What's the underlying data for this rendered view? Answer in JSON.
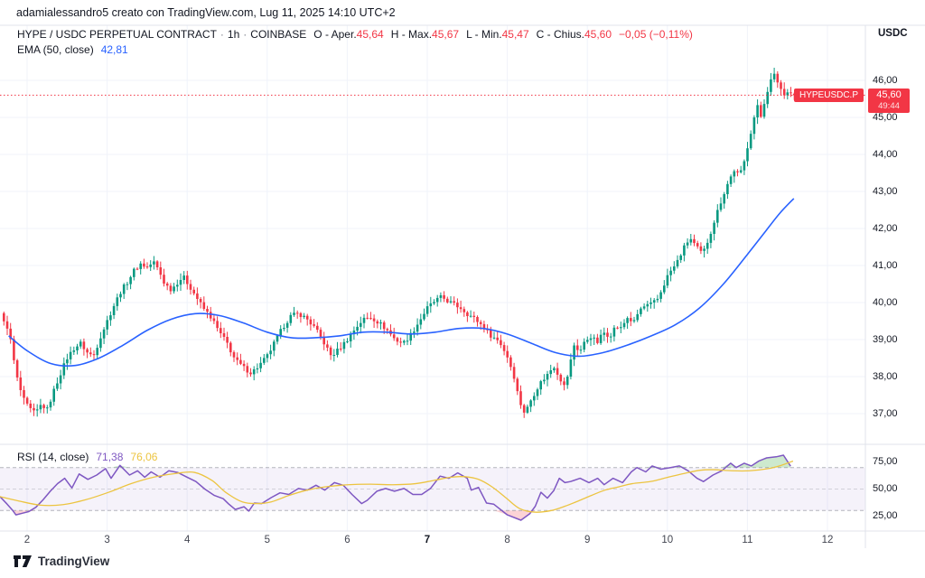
{
  "header": {
    "attribution": "adamialessandro5 creato con TradingView.com, Lug 11, 2025 14:10 UTC+2"
  },
  "legend": {
    "symbol": "HYPE / USDC PERPETUAL CONTRACT",
    "separator": "·",
    "timeframe": "1h",
    "exchange": "COINBASE",
    "ohlc": [
      {
        "label": "O - Aper.",
        "value": "45,64"
      },
      {
        "label": "H - Max.",
        "value": "45,67"
      },
      {
        "label": "L - Min.",
        "value": "45,47"
      },
      {
        "label": "C - Chius.",
        "value": "45,60"
      }
    ],
    "change": "−0,05 (−0,11%)",
    "ema_label": "EMA (50, close)",
    "ema_value": "42,81"
  },
  "rsi_legend": {
    "label": "RSI (14, close)",
    "value": "71,38",
    "ma_value": "76,06"
  },
  "price_axis": {
    "currency": "USDC",
    "badge": {
      "symbol": "HYPEUSDC.P",
      "price": "45,60",
      "countdown": "49:44"
    }
  },
  "footer": {
    "brand": "TradingView"
  },
  "colors": {
    "up": "#089981",
    "down": "#f23645",
    "ema": "#2962ff",
    "rsi": "#7e57c2",
    "rsi_ma": "#ecc440",
    "grid": "#f0f3fa",
    "border": "#e0e3eb",
    "rsi_band": "rgba(126,87,194,0.08)",
    "band_line": "#787b86",
    "overbought_fill": "rgba(76,175,80,0.28)",
    "oversold_fill": "rgba(242,54,69,0.22)"
  },
  "chart_data": {
    "type": "candlestick",
    "title": "HYPE / USDC PERPETUAL CONTRACT · 1h · COINBASE",
    "timezone": "UTC+2",
    "x_axis": {
      "unit": "day of July 2025",
      "ticks": [
        {
          "day": 2,
          "label": "2"
        },
        {
          "day": 3,
          "label": "3"
        },
        {
          "day": 4,
          "label": "4"
        },
        {
          "day": 5,
          "label": "5"
        },
        {
          "day": 6,
          "label": "6"
        },
        {
          "day": 7,
          "label": "7",
          "bold": true
        },
        {
          "day": 8,
          "label": "8"
        },
        {
          "day": 9,
          "label": "9"
        },
        {
          "day": 10,
          "label": "10"
        },
        {
          "day": 11,
          "label": "11"
        },
        {
          "day": 12,
          "label": "12"
        }
      ]
    },
    "y_axis": {
      "range": [
        36.2,
        47.5
      ],
      "ticks": [
        {
          "value": 46,
          "label": "46,00"
        },
        {
          "value": 45,
          "label": "45,00"
        },
        {
          "value": 44,
          "label": "44,00"
        },
        {
          "value": 43,
          "label": "43,00"
        },
        {
          "value": 42,
          "label": "42,00"
        },
        {
          "value": 41,
          "label": "41,00"
        },
        {
          "value": 40,
          "label": "40,00"
        },
        {
          "value": 39,
          "label": "39,00"
        },
        {
          "value": 38,
          "label": "38,00"
        },
        {
          "value": 37,
          "label": "37,00"
        }
      ]
    },
    "last_bar": {
      "open": 45.64,
      "high": 45.67,
      "low": 45.47,
      "close": 45.6,
      "change": "-0,05",
      "change_pct": "-0,11%"
    },
    "current_price": 45.6,
    "bars": {
      "start_day": 1.71,
      "end_day": 11.58,
      "interval_days": 0.04167,
      "count": 238
    },
    "close_path": [
      [
        1.71,
        39.45
      ],
      [
        1.77,
        39.3
      ],
      [
        1.82,
        38.6
      ],
      [
        1.88,
        37.9
      ],
      [
        1.95,
        37.4
      ],
      [
        2.02,
        37.15
      ],
      [
        2.1,
        37.0
      ],
      [
        2.18,
        37.25
      ],
      [
        2.25,
        37.1
      ],
      [
        2.33,
        37.6
      ],
      [
        2.42,
        38.1
      ],
      [
        2.5,
        38.5
      ],
      [
        2.58,
        38.75
      ],
      [
        2.67,
        38.9
      ],
      [
        2.75,
        38.65
      ],
      [
        2.83,
        38.55
      ],
      [
        2.92,
        39.1
      ],
      [
        3.0,
        39.5
      ],
      [
        3.08,
        39.9
      ],
      [
        3.17,
        40.3
      ],
      [
        3.25,
        40.55
      ],
      [
        3.33,
        40.85
      ],
      [
        3.42,
        41.05
      ],
      [
        3.5,
        40.95
      ],
      [
        3.58,
        41.1
      ],
      [
        3.65,
        40.85
      ],
      [
        3.72,
        40.5
      ],
      [
        3.8,
        40.35
      ],
      [
        3.88,
        40.55
      ],
      [
        3.95,
        40.7
      ],
      [
        4.03,
        40.45
      ],
      [
        4.1,
        40.2
      ],
      [
        4.2,
        39.85
      ],
      [
        4.3,
        39.6
      ],
      [
        4.4,
        39.2
      ],
      [
        4.5,
        38.9
      ],
      [
        4.6,
        38.45
      ],
      [
        4.7,
        38.25
      ],
      [
        4.8,
        38.1
      ],
      [
        4.9,
        38.3
      ],
      [
        5.0,
        38.55
      ],
      [
        5.1,
        38.95
      ],
      [
        5.2,
        39.35
      ],
      [
        5.3,
        39.65
      ],
      [
        5.4,
        39.7
      ],
      [
        5.5,
        39.55
      ],
      [
        5.6,
        39.3
      ],
      [
        5.7,
        38.95
      ],
      [
        5.8,
        38.55
      ],
      [
        5.9,
        38.75
      ],
      [
        6.0,
        39.0
      ],
      [
        6.1,
        39.3
      ],
      [
        6.2,
        39.55
      ],
      [
        6.3,
        39.6
      ],
      [
        6.4,
        39.45
      ],
      [
        6.5,
        39.25
      ],
      [
        6.6,
        39.0
      ],
      [
        6.7,
        38.9
      ],
      [
        6.8,
        39.15
      ],
      [
        6.9,
        39.5
      ],
      [
        7.0,
        39.85
      ],
      [
        7.1,
        40.05
      ],
      [
        7.18,
        40.15
      ],
      [
        7.25,
        40.05
      ],
      [
        7.33,
        39.95
      ],
      [
        7.42,
        39.85
      ],
      [
        7.5,
        39.7
      ],
      [
        7.6,
        39.55
      ],
      [
        7.7,
        39.35
      ],
      [
        7.8,
        39.1
      ],
      [
        7.9,
        38.95
      ],
      [
        8.0,
        38.55
      ],
      [
        8.08,
        38.05
      ],
      [
        8.15,
        37.35
      ],
      [
        8.22,
        37.0
      ],
      [
        8.3,
        37.4
      ],
      [
        8.4,
        37.8
      ],
      [
        8.5,
        38.05
      ],
      [
        8.58,
        38.3
      ],
      [
        8.65,
        38.0
      ],
      [
        8.72,
        37.7
      ],
      [
        8.78,
        38.3
      ],
      [
        8.84,
        38.9
      ],
      [
        8.9,
        38.65
      ],
      [
        8.97,
        38.95
      ],
      [
        9.05,
        39.1
      ],
      [
        9.12,
        38.9
      ],
      [
        9.2,
        39.2
      ],
      [
        9.28,
        39.1
      ],
      [
        9.35,
        39.35
      ],
      [
        9.42,
        39.3
      ],
      [
        9.5,
        39.6
      ],
      [
        9.58,
        39.45
      ],
      [
        9.65,
        39.8
      ],
      [
        9.72,
        39.9
      ],
      [
        9.8,
        39.95
      ],
      [
        9.88,
        40.1
      ],
      [
        9.95,
        40.45
      ],
      [
        10.02,
        40.8
      ],
      [
        10.1,
        41.0
      ],
      [
        10.2,
        41.45
      ],
      [
        10.28,
        41.75
      ],
      [
        10.36,
        41.5
      ],
      [
        10.44,
        41.3
      ],
      [
        10.52,
        41.75
      ],
      [
        10.6,
        42.3
      ],
      [
        10.68,
        42.8
      ],
      [
        10.76,
        43.25
      ],
      [
        10.84,
        43.6
      ],
      [
        10.9,
        43.4
      ],
      [
        10.96,
        43.8
      ],
      [
        11.02,
        44.4
      ],
      [
        11.08,
        44.95
      ],
      [
        11.12,
        45.35
      ],
      [
        11.16,
        44.95
      ],
      [
        11.22,
        45.5
      ],
      [
        11.28,
        45.95
      ],
      [
        11.34,
        46.15
      ],
      [
        11.4,
        45.85
      ],
      [
        11.46,
        45.6
      ],
      [
        11.5,
        45.75
      ],
      [
        11.54,
        45.45
      ],
      [
        11.58,
        45.6
      ]
    ],
    "ema50_path": [
      [
        1.77,
        39.1
      ],
      [
        2.0,
        38.7
      ],
      [
        2.3,
        38.35
      ],
      [
        2.6,
        38.3
      ],
      [
        2.9,
        38.5
      ],
      [
        3.2,
        38.85
      ],
      [
        3.5,
        39.25
      ],
      [
        3.8,
        39.55
      ],
      [
        4.1,
        39.7
      ],
      [
        4.4,
        39.65
      ],
      [
        4.7,
        39.45
      ],
      [
        5.0,
        39.2
      ],
      [
        5.3,
        39.05
      ],
      [
        5.6,
        39.05
      ],
      [
        5.9,
        39.1
      ],
      [
        6.2,
        39.2
      ],
      [
        6.5,
        39.2
      ],
      [
        6.8,
        39.15
      ],
      [
        7.1,
        39.2
      ],
      [
        7.4,
        39.3
      ],
      [
        7.7,
        39.3
      ],
      [
        8.0,
        39.15
      ],
      [
        8.3,
        38.9
      ],
      [
        8.6,
        38.65
      ],
      [
        8.9,
        38.55
      ],
      [
        9.2,
        38.65
      ],
      [
        9.5,
        38.85
      ],
      [
        9.8,
        39.1
      ],
      [
        10.1,
        39.4
      ],
      [
        10.4,
        39.85
      ],
      [
        10.7,
        40.5
      ],
      [
        11.0,
        41.3
      ],
      [
        11.2,
        41.85
      ],
      [
        11.4,
        42.4
      ],
      [
        11.58,
        42.81
      ]
    ],
    "rsi": {
      "period": 14,
      "value": 71.38,
      "ma_value": 76.06,
      "bands": {
        "upper": 70,
        "middle": 50,
        "lower": 30
      },
      "axis_ticks": [
        {
          "value": 75,
          "label": "75,00"
        },
        {
          "value": 50,
          "label": "50,00"
        },
        {
          "value": 25,
          "label": "25,00"
        }
      ],
      "path": [
        [
          1.66,
          43
        ],
        [
          1.75,
          36
        ],
        [
          1.82,
          30
        ],
        [
          1.86,
          26
        ],
        [
          1.94,
          27.5
        ],
        [
          2.02,
          29
        ],
        [
          2.11,
          33
        ],
        [
          2.2,
          40
        ],
        [
          2.29,
          48
        ],
        [
          2.38,
          55
        ],
        [
          2.47,
          60
        ],
        [
          2.56,
          51
        ],
        [
          2.65,
          64
        ],
        [
          2.76,
          59
        ],
        [
          2.87,
          63
        ],
        [
          2.98,
          69
        ],
        [
          3.05,
          60
        ],
        [
          3.16,
          72
        ],
        [
          3.28,
          63
        ],
        [
          3.38,
          67
        ],
        [
          3.47,
          61
        ],
        [
          3.55,
          66
        ],
        [
          3.66,
          61
        ],
        [
          3.77,
          67
        ],
        [
          3.88,
          65.5
        ],
        [
          4.0,
          61
        ],
        [
          4.11,
          57
        ],
        [
          4.22,
          50
        ],
        [
          4.34,
          44
        ],
        [
          4.45,
          41
        ],
        [
          4.52,
          36
        ],
        [
          4.6,
          31
        ],
        [
          4.71,
          33.5
        ],
        [
          4.77,
          29.5
        ],
        [
          4.84,
          37
        ],
        [
          4.93,
          36.5
        ],
        [
          5.05,
          42
        ],
        [
          5.16,
          46.5
        ],
        [
          5.27,
          45
        ],
        [
          5.39,
          50.5
        ],
        [
          5.5,
          49
        ],
        [
          5.61,
          53.5
        ],
        [
          5.72,
          49
        ],
        [
          5.84,
          56
        ],
        [
          5.95,
          53.5
        ],
        [
          6.06,
          45
        ],
        [
          6.18,
          36.5
        ],
        [
          6.25,
          39.5
        ],
        [
          6.37,
          48
        ],
        [
          6.48,
          50.5
        ],
        [
          6.59,
          48
        ],
        [
          6.71,
          50.5
        ],
        [
          6.82,
          45
        ],
        [
          6.93,
          45
        ],
        [
          7.04,
          50.5
        ],
        [
          7.16,
          62
        ],
        [
          7.27,
          60
        ],
        [
          7.38,
          65
        ],
        [
          7.5,
          60
        ],
        [
          7.55,
          49
        ],
        [
          7.64,
          51.5
        ],
        [
          7.74,
          37
        ],
        [
          7.83,
          36
        ],
        [
          8.0,
          26
        ],
        [
          8.17,
          21
        ],
        [
          8.28,
          27
        ],
        [
          8.35,
          34
        ],
        [
          8.42,
          47
        ],
        [
          8.5,
          41.5
        ],
        [
          8.58,
          48.5
        ],
        [
          8.65,
          60
        ],
        [
          8.72,
          56
        ],
        [
          8.79,
          57
        ],
        [
          8.91,
          60
        ],
        [
          9.02,
          56
        ],
        [
          9.13,
          60
        ],
        [
          9.21,
          54
        ],
        [
          9.32,
          60
        ],
        [
          9.44,
          56
        ],
        [
          9.55,
          66
        ],
        [
          9.62,
          70
        ],
        [
          9.73,
          66
        ],
        [
          9.81,
          71.5
        ],
        [
          9.92,
          68.5
        ],
        [
          10.04,
          70
        ],
        [
          10.15,
          71.5
        ],
        [
          10.26,
          67
        ],
        [
          10.37,
          60
        ],
        [
          10.45,
          57
        ],
        [
          10.57,
          63
        ],
        [
          10.68,
          67
        ],
        [
          10.79,
          74
        ],
        [
          10.86,
          70
        ],
        [
          10.96,
          74
        ],
        [
          11.05,
          71.5
        ],
        [
          11.14,
          76
        ],
        [
          11.24,
          79
        ],
        [
          11.36,
          80
        ],
        [
          11.45,
          81.5
        ],
        [
          11.54,
          71.38
        ]
      ],
      "ma_path": [
        [
          1.66,
          43
        ],
        [
          1.89,
          39
        ],
        [
          2.17,
          35
        ],
        [
          2.45,
          35.5
        ],
        [
          2.73,
          40
        ],
        [
          3.02,
          47
        ],
        [
          3.3,
          55
        ],
        [
          3.58,
          61
        ],
        [
          3.86,
          64.5
        ],
        [
          4.09,
          65.5
        ],
        [
          4.31,
          58
        ],
        [
          4.48,
          47
        ],
        [
          4.69,
          38
        ],
        [
          4.88,
          36.5
        ],
        [
          5.05,
          38
        ],
        [
          5.27,
          44
        ],
        [
          5.5,
          49
        ],
        [
          5.72,
          52
        ],
        [
          6.01,
          54
        ],
        [
          6.29,
          54.5
        ],
        [
          6.57,
          54
        ],
        [
          6.85,
          55
        ],
        [
          7.08,
          58
        ],
        [
          7.3,
          61
        ],
        [
          7.47,
          61.5
        ],
        [
          7.64,
          59
        ],
        [
          7.81,
          52
        ],
        [
          7.98,
          42
        ],
        [
          8.15,
          32
        ],
        [
          8.34,
          28.5
        ],
        [
          8.55,
          30
        ],
        [
          8.72,
          34
        ],
        [
          8.89,
          39
        ],
        [
          9.05,
          44
        ],
        [
          9.22,
          49
        ],
        [
          9.39,
          52
        ],
        [
          9.56,
          55
        ],
        [
          9.79,
          57
        ],
        [
          10.01,
          61
        ],
        [
          10.24,
          65
        ],
        [
          10.41,
          67.5
        ],
        [
          10.58,
          68
        ],
        [
          10.8,
          67
        ],
        [
          11.03,
          67
        ],
        [
          11.26,
          69
        ],
        [
          11.42,
          72
        ],
        [
          11.57,
          76.06
        ]
      ]
    }
  }
}
